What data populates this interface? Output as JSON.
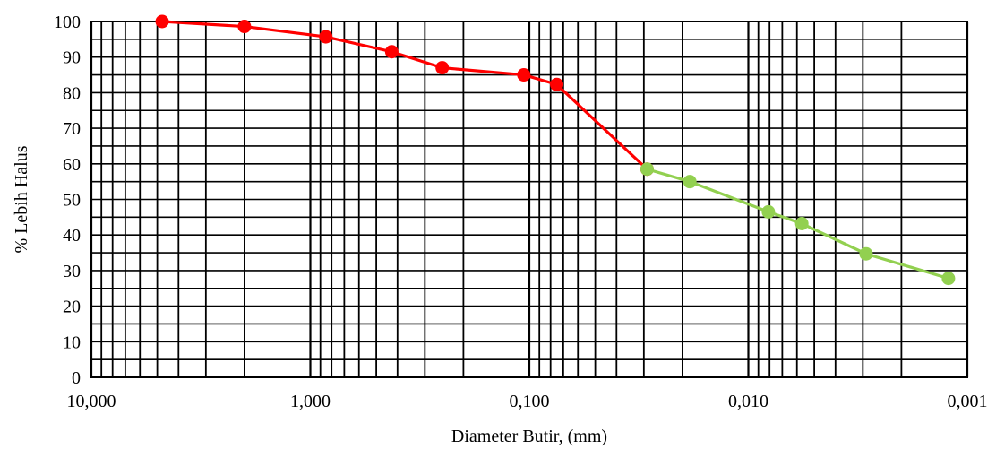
{
  "chart_data": {
    "type": "scatter",
    "title": "",
    "xlabel": "Diameter Butir, (mm)",
    "ylabel": "% Lebih Halus",
    "xscale": "log",
    "x_reversed": true,
    "xlim": [
      10,
      0.001
    ],
    "ylim": [
      0,
      100
    ],
    "grid": true,
    "x_tick_labels": [
      "10,000",
      "1,000",
      "0,100",
      "0,010",
      "0,001"
    ],
    "y_tick_labels": [
      "0",
      "10",
      "20",
      "30",
      "40",
      "50",
      "60",
      "70",
      "80",
      "90",
      "100"
    ],
    "series": [
      {
        "color": "#ff0000",
        "marker": "circle",
        "x": [
          4.75,
          2.0,
          0.85,
          0.425,
          0.25,
          0.106,
          0.075,
          0.029
        ],
        "y": [
          100,
          98.6,
          95.7,
          91.5,
          87.0,
          85.0,
          82.3,
          58.5
        ]
      },
      {
        "color": "#92d050",
        "marker": "circle",
        "x": [
          0.029,
          0.0185,
          0.0081,
          0.0057,
          0.0029,
          0.00122
        ],
        "y": [
          58.5,
          55.0,
          46.5,
          43.2,
          34.7,
          27.8
        ]
      }
    ]
  }
}
